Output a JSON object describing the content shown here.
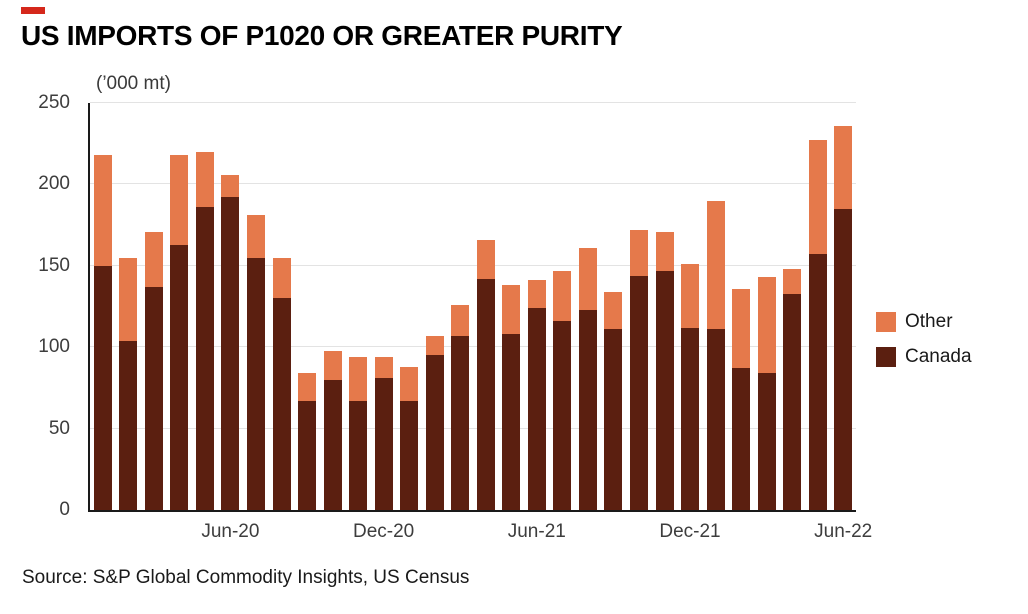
{
  "brand": {
    "mark_color": "#D5281B"
  },
  "title": "US IMPORTS OF P1020 OR GREATER PURITY",
  "unit_label": "(’000 mt)",
  "source": "Source: S&P Global Commodity Insights, US Census",
  "legend": {
    "items": [
      {
        "label": "Other",
        "color": "#E5794B"
      },
      {
        "label": "Canada",
        "color": "#5B1F10"
      }
    ]
  },
  "chart_data": {
    "type": "bar",
    "stacked": true,
    "title": "US IMPORTS OF P1020 OR GREATER PURITY",
    "xlabel": "",
    "ylabel": "('000 mt)",
    "ylim": [
      0,
      250
    ],
    "yticks": [
      0,
      50,
      100,
      150,
      200,
      250
    ],
    "grid": "horizontal",
    "legend_position": "right",
    "categories": [
      "Jan-20",
      "Feb-20",
      "Mar-20",
      "Apr-20",
      "May-20",
      "Jun-20",
      "Jul-20",
      "Aug-20",
      "Sep-20",
      "Oct-20",
      "Nov-20",
      "Dec-20",
      "Jan-21",
      "Feb-21",
      "Mar-21",
      "Apr-21",
      "May-21",
      "Jun-21",
      "Jul-21",
      "Aug-21",
      "Sep-21",
      "Oct-21",
      "Nov-21",
      "Dec-21",
      "Jan-22",
      "Feb-22",
      "Mar-22",
      "Apr-22",
      "May-22",
      "Jun-22"
    ],
    "x_tick_labels": [
      {
        "index": 5,
        "label": "Jun-20"
      },
      {
        "index": 11,
        "label": "Dec-20"
      },
      {
        "index": 17,
        "label": "Jun-21"
      },
      {
        "index": 23,
        "label": "Dec-21"
      },
      {
        "index": 29,
        "label": "Jun-22"
      }
    ],
    "series": [
      {
        "name": "Canada",
        "color": "#5B1F10",
        "values": [
          150,
          104,
          137,
          163,
          186,
          192,
          155,
          130,
          67,
          80,
          67,
          81,
          67,
          95,
          107,
          142,
          108,
          124,
          116,
          123,
          111,
          144,
          147,
          112,
          111,
          87,
          84,
          133,
          157,
          185
        ]
      },
      {
        "name": "Other",
        "color": "#E5794B",
        "values": [
          68,
          51,
          34,
          55,
          34,
          14,
          26,
          25,
          17,
          18,
          27,
          13,
          21,
          12,
          19,
          24,
          30,
          17,
          31,
          38,
          23,
          28,
          24,
          39,
          79,
          49,
          59,
          15,
          70,
          51
        ]
      }
    ]
  }
}
